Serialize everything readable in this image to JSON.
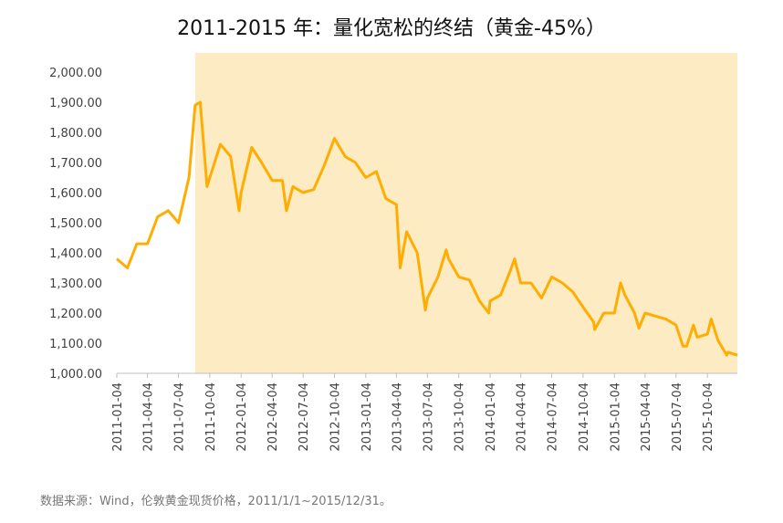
{
  "chart_data": {
    "type": "line",
    "title": "2011-2015 年：量化宽松的终结（黄金-45%）",
    "source": "数据来源：Wind，伦敦黄金现货价格，2011/1/1~2015/12/31。",
    "highlight_range": [
      "2011-08-22",
      "2015-12-31"
    ],
    "highlight_color": "#fdebc4",
    "xlim": [
      "2011-01-04",
      "2015-12-31"
    ],
    "xticks": [
      "2011-01-04",
      "2011-04-04",
      "2011-07-04",
      "2011-10-04",
      "2012-01-04",
      "2012-04-04",
      "2012-07-04",
      "2012-10-04",
      "2013-01-04",
      "2013-04-04",
      "2013-07-04",
      "2013-10-04",
      "2014-01-04",
      "2014-04-04",
      "2014-07-04",
      "2014-10-04",
      "2015-01-04",
      "2015-04-04",
      "2015-07-04",
      "2015-10-04"
    ],
    "ylim": [
      1000,
      2000
    ],
    "yticks": [
      {
        "value": 1000,
        "label": "1,000.00"
      },
      {
        "value": 1100,
        "label": "1,100.00"
      },
      {
        "value": 1200,
        "label": "1,200.00"
      },
      {
        "value": 1300,
        "label": "1,300.00"
      },
      {
        "value": 1400,
        "label": "1,400.00"
      },
      {
        "value": 1500,
        "label": "1,500.00"
      },
      {
        "value": 1600,
        "label": "1,600.00"
      },
      {
        "value": 1700,
        "label": "1,700.00"
      },
      {
        "value": 1800,
        "label": "1,800.00"
      },
      {
        "value": 1900,
        "label": "1,900.00"
      },
      {
        "value": 2000,
        "label": "2,000.00"
      }
    ],
    "x": [
      "2011-01-04",
      "2011-02-04",
      "2011-03-04",
      "2011-04-04",
      "2011-05-04",
      "2011-06-04",
      "2011-07-04",
      "2011-08-04",
      "2011-08-22",
      "2011-09-06",
      "2011-09-26",
      "2011-10-04",
      "2011-11-04",
      "2011-12-04",
      "2011-12-29",
      "2012-01-04",
      "2012-02-04",
      "2012-03-04",
      "2012-04-04",
      "2012-05-04",
      "2012-05-16",
      "2012-06-04",
      "2012-07-04",
      "2012-08-04",
      "2012-09-04",
      "2012-10-04",
      "2012-11-04",
      "2012-12-04",
      "2013-01-04",
      "2013-02-04",
      "2013-03-04",
      "2013-04-04",
      "2013-04-15",
      "2013-05-04",
      "2013-06-04",
      "2013-06-28",
      "2013-07-04",
      "2013-08-04",
      "2013-08-28",
      "2013-09-04",
      "2013-10-04",
      "2013-11-04",
      "2013-12-04",
      "2013-12-31",
      "2014-01-04",
      "2014-02-04",
      "2014-03-04",
      "2014-03-17",
      "2014-04-04",
      "2014-05-04",
      "2014-06-04",
      "2014-07-04",
      "2014-08-04",
      "2014-09-04",
      "2014-10-04",
      "2014-11-04",
      "2014-11-07",
      "2014-12-04",
      "2015-01-04",
      "2015-01-22",
      "2015-02-04",
      "2015-03-04",
      "2015-03-17",
      "2015-04-04",
      "2015-05-04",
      "2015-06-04",
      "2015-07-04",
      "2015-07-24",
      "2015-08-04",
      "2015-08-24",
      "2015-09-04",
      "2015-10-04",
      "2015-10-15",
      "2015-11-04",
      "2015-11-30",
      "2015-12-04",
      "2015-12-31"
    ],
    "series": [
      {
        "color": "#ffad00",
        "values": [
          1380,
          1350,
          1430,
          1430,
          1520,
          1540,
          1500,
          1650,
          1890,
          1900,
          1620,
          1650,
          1760,
          1720,
          1540,
          1600,
          1750,
          1700,
          1640,
          1640,
          1540,
          1620,
          1600,
          1610,
          1690,
          1780,
          1720,
          1700,
          1650,
          1670,
          1580,
          1560,
          1350,
          1470,
          1400,
          1210,
          1250,
          1320,
          1410,
          1380,
          1320,
          1310,
          1240,
          1200,
          1240,
          1260,
          1340,
          1380,
          1300,
          1300,
          1250,
          1320,
          1300,
          1270,
          1220,
          1170,
          1145,
          1200,
          1200,
          1300,
          1260,
          1200,
          1150,
          1200,
          1190,
          1180,
          1160,
          1090,
          1090,
          1160,
          1120,
          1130,
          1180,
          1110,
          1060,
          1070,
          1060
        ]
      }
    ]
  }
}
